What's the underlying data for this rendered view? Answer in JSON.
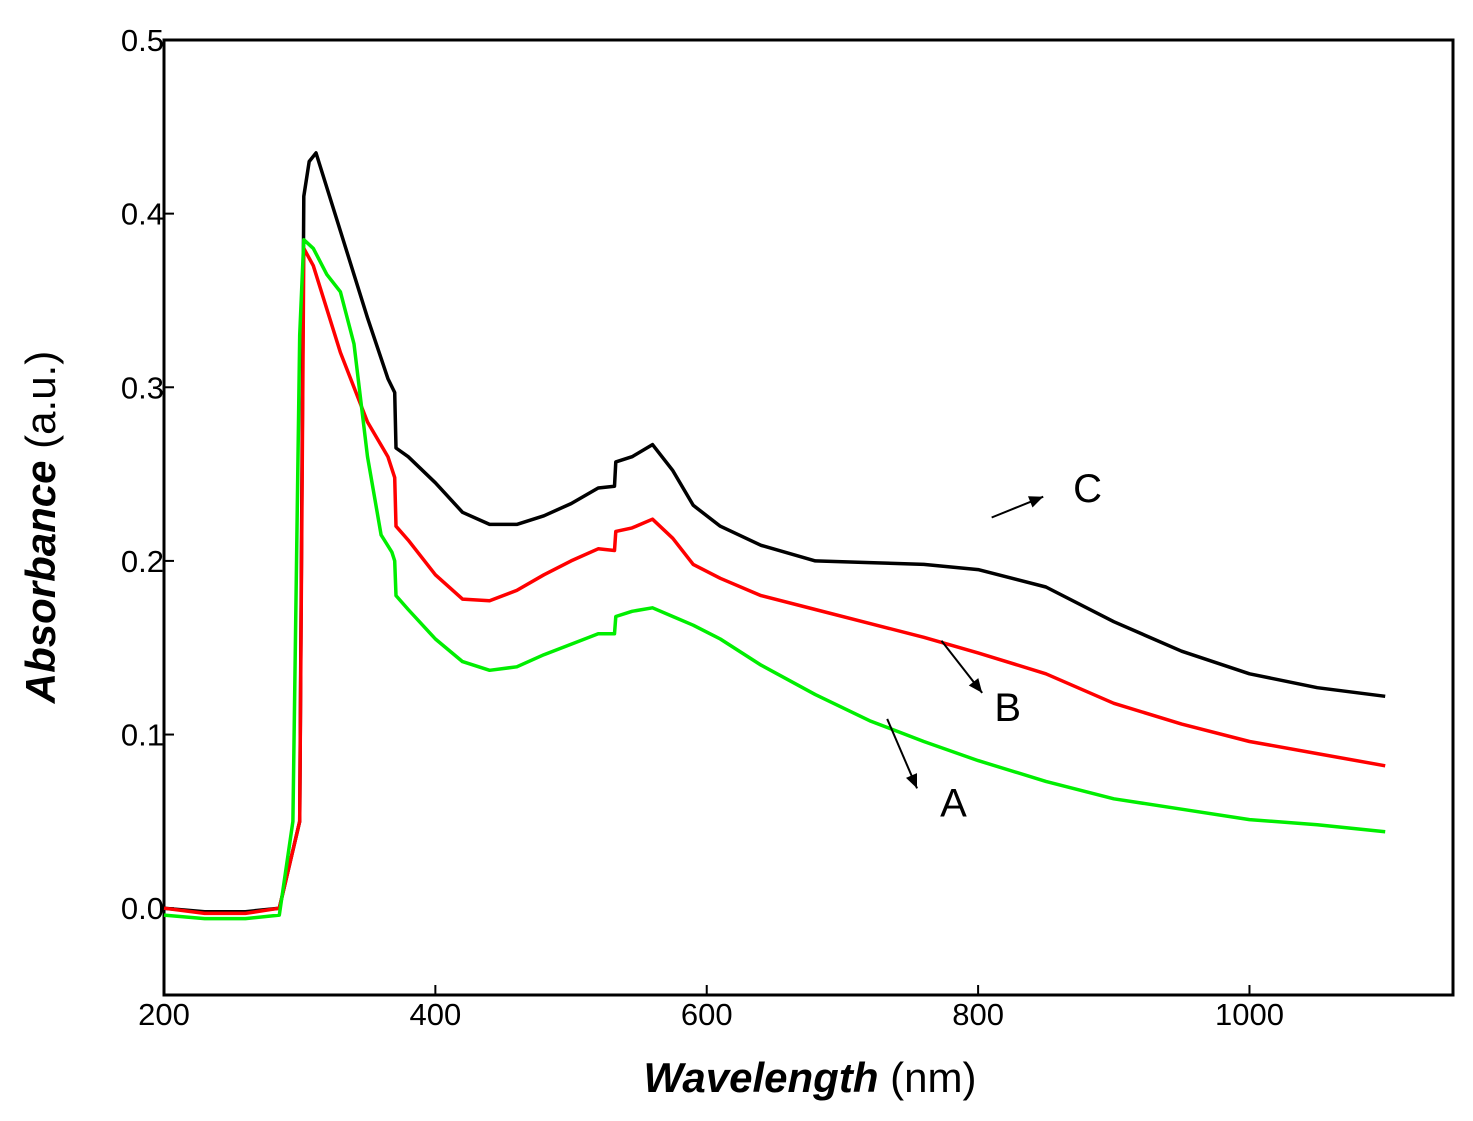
{
  "chart_data": {
    "type": "line",
    "xlabel_italic": "Wavelength",
    "xlabel_unit": "(nm)",
    "ylabel_italic": "Absorbance",
    "ylabel_unit": "(a.u.)",
    "xlim": [
      200,
      1150
    ],
    "ylim": [
      -0.05,
      0.5
    ],
    "xticks": [
      200,
      400,
      600,
      800,
      1000
    ],
    "xtick_labels": [
      "200",
      "400",
      "600",
      "800",
      "1000"
    ],
    "yticks": [
      0.0,
      0.1,
      0.2,
      0.3,
      0.4,
      0.5
    ],
    "ytick_labels": [
      "0.0",
      "0.1",
      "0.2",
      "0.3",
      "0.4",
      "0.5"
    ],
    "grid": false,
    "series": [
      {
        "name": "C",
        "color": "#000000",
        "x": [
          200,
          230,
          260,
          285,
          300,
          303,
          307,
          312,
          330,
          350,
          365,
          370,
          371,
          380,
          400,
          420,
          440,
          460,
          480,
          500,
          520,
          532,
          533,
          545,
          560,
          575,
          590,
          610,
          640,
          680,
          720,
          760,
          800,
          850,
          900,
          950,
          1000,
          1050,
          1100
        ],
        "y": [
          0.0,
          -0.002,
          -0.002,
          0.0,
          0.05,
          0.41,
          0.43,
          0.435,
          0.39,
          0.34,
          0.305,
          0.297,
          0.265,
          0.26,
          0.245,
          0.228,
          0.221,
          0.221,
          0.226,
          0.233,
          0.242,
          0.243,
          0.257,
          0.26,
          0.267,
          0.252,
          0.232,
          0.22,
          0.209,
          0.2,
          0.199,
          0.198,
          0.195,
          0.185,
          0.165,
          0.148,
          0.135,
          0.127,
          0.122
        ]
      },
      {
        "name": "B",
        "color": "#ff0000",
        "x": [
          200,
          230,
          260,
          285,
          300,
          303,
          310,
          330,
          350,
          365,
          370,
          371,
          380,
          400,
          420,
          440,
          460,
          480,
          500,
          520,
          532,
          533,
          545,
          560,
          575,
          590,
          610,
          640,
          680,
          720,
          760,
          800,
          850,
          900,
          950,
          1000,
          1050,
          1100
        ],
        "y": [
          0.0,
          -0.003,
          -0.003,
          0.0,
          0.05,
          0.38,
          0.37,
          0.32,
          0.28,
          0.26,
          0.248,
          0.22,
          0.212,
          0.192,
          0.178,
          0.177,
          0.183,
          0.192,
          0.2,
          0.207,
          0.206,
          0.217,
          0.219,
          0.224,
          0.213,
          0.198,
          0.19,
          0.18,
          0.172,
          0.164,
          0.156,
          0.147,
          0.135,
          0.118,
          0.106,
          0.096,
          0.089,
          0.082
        ]
      },
      {
        "name": "A",
        "color": "#00ee00",
        "x": [
          200,
          230,
          260,
          285,
          295,
          300,
          303,
          310,
          320,
          330,
          340,
          350,
          360,
          368,
          370,
          371,
          380,
          400,
          420,
          440,
          460,
          480,
          500,
          520,
          532,
          533,
          545,
          560,
          575,
          590,
          610,
          640,
          680,
          720,
          760,
          800,
          850,
          900,
          950,
          1000,
          1050,
          1100
        ],
        "y": [
          -0.004,
          -0.006,
          -0.006,
          -0.004,
          0.05,
          0.33,
          0.385,
          0.38,
          0.365,
          0.355,
          0.325,
          0.26,
          0.215,
          0.205,
          0.2,
          0.18,
          0.172,
          0.155,
          0.142,
          0.137,
          0.139,
          0.146,
          0.152,
          0.158,
          0.158,
          0.168,
          0.171,
          0.173,
          0.168,
          0.163,
          0.155,
          0.14,
          0.123,
          0.108,
          0.096,
          0.085,
          0.073,
          0.063,
          0.057,
          0.051,
          0.048,
          0.044
        ]
      }
    ],
    "annotations": [
      {
        "label": "C",
        "series": "C",
        "from": [
          810,
          0.225
        ],
        "to": [
          848,
          0.237
        ],
        "text_at": [
          870,
          0.242
        ]
      },
      {
        "label": "B",
        "series": "B",
        "from": [
          773,
          0.154
        ],
        "to": [
          803,
          0.124
        ],
        "text_at": [
          812,
          0.116
        ]
      },
      {
        "label": "A",
        "series": "A",
        "from": [
          733,
          0.109
        ],
        "to": [
          755,
          0.069
        ],
        "text_at": [
          772,
          0.061
        ]
      }
    ]
  }
}
